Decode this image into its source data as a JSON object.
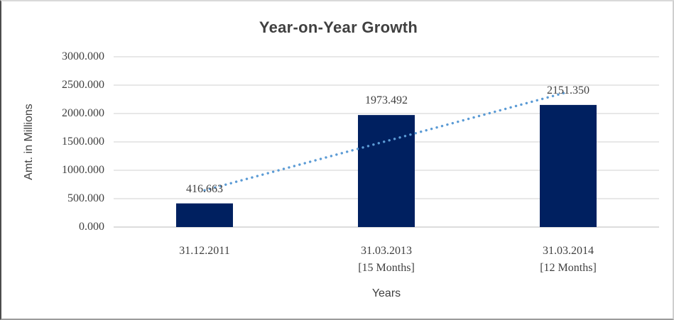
{
  "chart": {
    "title": "Year-on-Year Growth",
    "x_axis_title": "Years",
    "y_axis_title": "Amt. in Millions"
  },
  "chart_data": {
    "type": "bar",
    "title": "Year-on-Year Growth",
    "xlabel": "Years",
    "ylabel": "Amt. in Millions",
    "categories": [
      [
        "31.12.2011"
      ],
      [
        "31.03.2013",
        "[15 Months]"
      ],
      [
        "31.03.2014",
        "[12 Months]"
      ]
    ],
    "values": [
      416.663,
      1973.492,
      2151.35
    ],
    "data_labels": [
      "416.663",
      "1973.492",
      "2151.350"
    ],
    "ylim": [
      0,
      3000
    ],
    "ytick_step": 500,
    "ytick_labels": [
      "0.000",
      "500.000",
      "1000.000",
      "1500.000",
      "2000.000",
      "2500.000",
      "3000.000"
    ],
    "grid": true,
    "legend": "none",
    "trendline": {
      "type": "linear",
      "style": "dotted"
    }
  },
  "colors": {
    "bar": "#002060",
    "trendline": "#5B9BD5",
    "gridline": "#D9D9D9",
    "axis_line": "#C6C6C6",
    "text": "#404040",
    "background": "#FFFFFF"
  }
}
